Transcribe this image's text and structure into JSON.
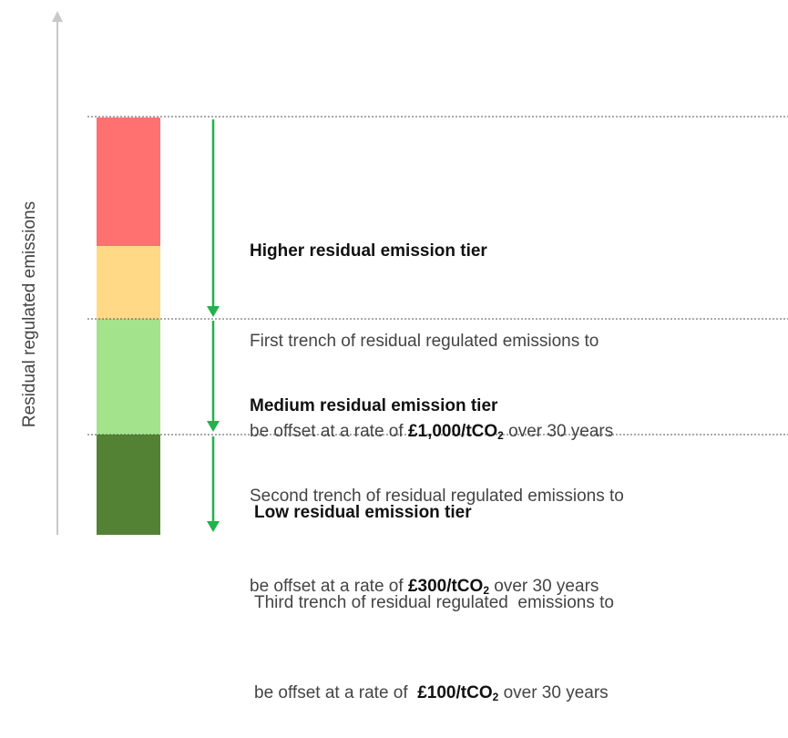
{
  "axis_label": "Residual regulated emissions",
  "tiers": [
    {
      "title": "Higher residual emission tier",
      "line1": "First trench of residual regulated emissions to",
      "prefix": "be offset at a rate of",
      "rate": "£1,000/tCO",
      "sub": "2",
      "suffix": "over 30 years"
    },
    {
      "title": "Medium residual emission tier",
      "line1": "Second trench of residual regulated emissions to",
      "prefix": "be offset at a rate of",
      "rate": "£300/tCO",
      "sub": "2",
      "suffix": "over 30 years"
    },
    {
      "title": "Low residual emission tier",
      "line1": "Third trench of residual regulated  emissions to",
      "prefix": "be offset at a rate of ",
      "rate": "£100/tCO",
      "sub": "2",
      "suffix": "over 30 years"
    }
  ]
}
